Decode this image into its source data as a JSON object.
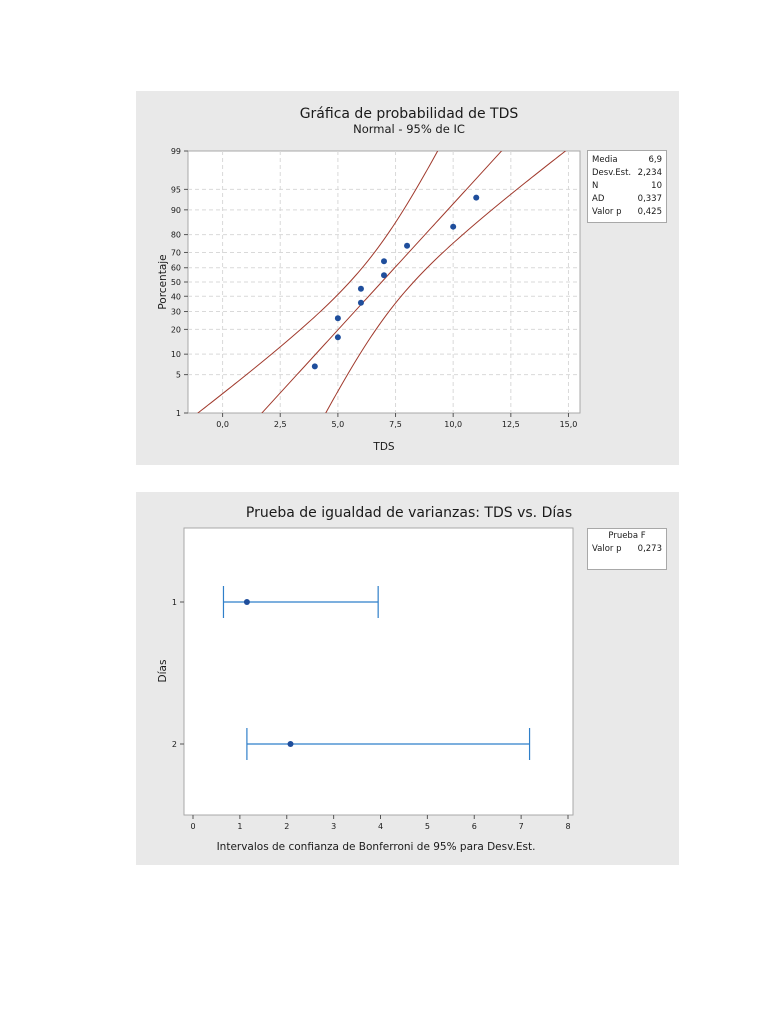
{
  "chart_data": [
    {
      "type": "scatter",
      "title": "Gráfica de probabilidad de TDS",
      "subtitle": "Normal - 95% de IC",
      "xlabel": "TDS",
      "ylabel": "Porcentaje",
      "xlim": [
        -1.5,
        15.5
      ],
      "x_ticks": [
        "0,0",
        "2,5",
        "5,0",
        "7,5",
        "10,0",
        "12,5",
        "15,0"
      ],
      "x_tick_values": [
        0,
        2.5,
        5,
        7.5,
        10,
        12.5,
        15
      ],
      "y_scale": "normal-probability",
      "ylim": [
        1,
        99
      ],
      "y_ticks": [
        "1",
        "5",
        "10",
        "20",
        "30",
        "40",
        "50",
        "60",
        "70",
        "80",
        "90",
        "95",
        "99"
      ],
      "y_tick_values": [
        1,
        5,
        10,
        20,
        30,
        40,
        50,
        60,
        70,
        80,
        90,
        95,
        99
      ],
      "grid": true,
      "points": [
        {
          "x": 4,
          "y": 6.7
        },
        {
          "x": 5,
          "y": 16.3
        },
        {
          "x": 5,
          "y": 26
        },
        {
          "x": 6,
          "y": 35.6
        },
        {
          "x": 6,
          "y": 45.2
        },
        {
          "x": 7,
          "y": 54.8
        },
        {
          "x": 7,
          "y": 64.4
        },
        {
          "x": 8,
          "y": 74
        },
        {
          "x": 10,
          "y": 83.7
        },
        {
          "x": 11,
          "y": 93.3
        }
      ],
      "fit": {
        "mean": 6.9,
        "sd": 2.234,
        "n": 10
      },
      "colors": {
        "points": "#1f4e9c",
        "lines": "#a0392c"
      },
      "stats": [
        {
          "label": "Media",
          "value": "6,9"
        },
        {
          "label": "Desv.Est.",
          "value": "2,234"
        },
        {
          "label": "N",
          "value": "10"
        },
        {
          "label": "AD",
          "value": "0,337"
        },
        {
          "label": "Valor p",
          "value": "0,425"
        }
      ]
    },
    {
      "type": "interval",
      "title": "Prueba de igualdad de varianzas: TDS vs. Días",
      "xlabel": "Intervalos de confianza de Bonferroni de 95% para Desv.Est.",
      "ylabel": "Días",
      "xlim": [
        0,
        8
      ],
      "x_ticks": [
        "0",
        "1",
        "2",
        "3",
        "4",
        "5",
        "6",
        "7",
        "8"
      ],
      "categories": [
        "1",
        "2"
      ],
      "intervals": [
        {
          "category": "1",
          "low": 0.65,
          "estimate": 1.15,
          "high": 3.95
        },
        {
          "category": "2",
          "low": 1.15,
          "estimate": 2.08,
          "high": 7.18
        }
      ],
      "colors": {
        "interval": "#2f7fc9",
        "point": "#1f4e9c"
      },
      "stats_header": "Prueba F",
      "stats": [
        {
          "label": "Valor p",
          "value": "0,273"
        }
      ]
    }
  ]
}
